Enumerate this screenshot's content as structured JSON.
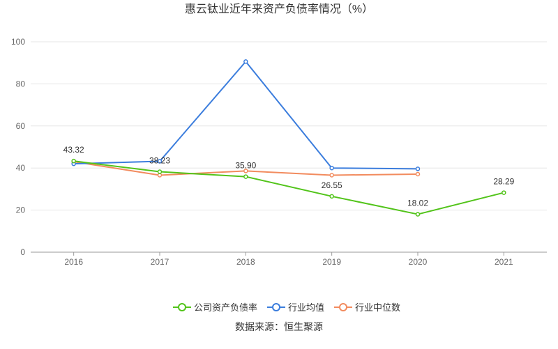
{
  "chart_data": {
    "type": "line",
    "title": "惠云钛业近年来资产负债率情况（%）",
    "categories": [
      "2016",
      "2017",
      "2018",
      "2019",
      "2020",
      "2021"
    ],
    "ylim": [
      0,
      100
    ],
    "yticks": [
      0,
      20,
      40,
      60,
      80,
      100
    ],
    "grid": true,
    "legend_position": "bottom",
    "series": [
      {
        "name": "公司资产负债率",
        "color": "#52c41a",
        "values": [
          43.32,
          38.23,
          35.9,
          26.55,
          18.02,
          28.29
        ],
        "labels": [
          "43.32",
          "38.23",
          "35.90",
          "26.55",
          "18.02",
          "28.29"
        ]
      },
      {
        "name": "行业均值",
        "color": "#3b7ddd",
        "values": [
          42.0,
          43.2,
          90.6,
          40.0,
          39.6,
          null
        ]
      },
      {
        "name": "行业中位数",
        "color": "#f28b5e",
        "values": [
          43.0,
          36.6,
          38.6,
          36.6,
          37.1,
          null
        ]
      }
    ]
  },
  "source_text": "数据来源：恒生聚源"
}
